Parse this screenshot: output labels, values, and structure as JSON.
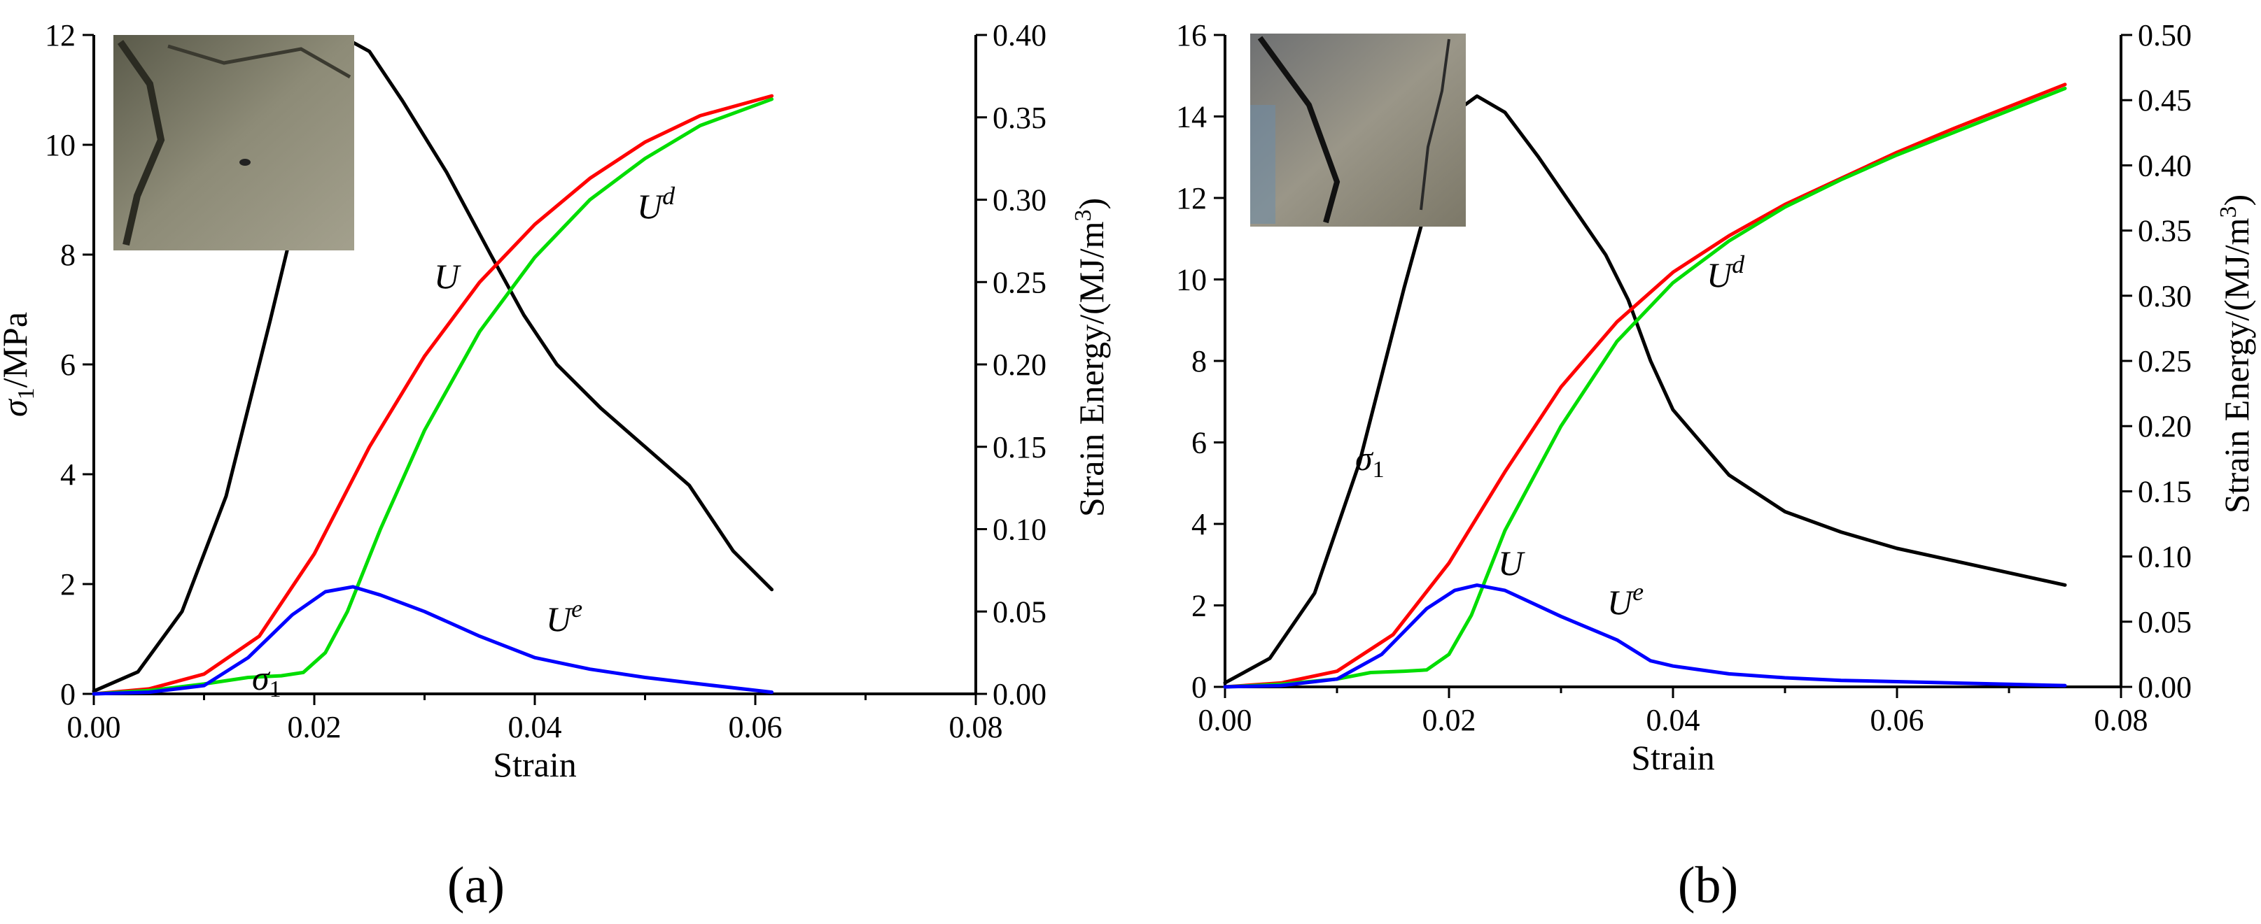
{
  "colors": {
    "stress": "#000000",
    "U": "#ff0000",
    "Ud": "#00dd00",
    "Ue": "#0000ff"
  },
  "chart_data": [
    {
      "panel": "(a)",
      "type": "line",
      "xlabel": "Strain",
      "ylabel_left": "σ1/MPa",
      "ylabel_right": "Strain Energy/(MJ/m3)",
      "xlim": [
        0,
        0.08
      ],
      "ylim_left": [
        0,
        12
      ],
      "ylim_right": [
        0,
        0.4
      ],
      "xticks": [
        "0.00",
        "0.02",
        "0.04",
        "0.06",
        "0.08"
      ],
      "yticks_left": [
        "0",
        "2",
        "4",
        "6",
        "8",
        "10",
        "12"
      ],
      "yticks_right": [
        "0.00",
        "0.05",
        "0.10",
        "0.15",
        "0.20",
        "0.25",
        "0.30",
        "0.35",
        "0.40"
      ],
      "series": [
        {
          "name": "σ1",
          "axis": "left",
          "color_key": "stress",
          "x": [
            0,
            0.004,
            0.008,
            0.012,
            0.016,
            0.019,
            0.021,
            0.0232,
            0.025,
            0.028,
            0.032,
            0.036,
            0.039,
            0.042,
            0.046,
            0.05,
            0.054,
            0.058,
            0.0615
          ],
          "y": [
            0.05,
            0.4,
            1.5,
            3.6,
            6.8,
            9.3,
            11.0,
            11.9,
            11.7,
            10.8,
            9.5,
            8.0,
            6.9,
            6.0,
            5.2,
            4.5,
            3.8,
            2.6,
            1.9
          ]
        },
        {
          "name": "U",
          "axis": "right",
          "color_key": "U",
          "x": [
            0,
            0.005,
            0.01,
            0.015,
            0.02,
            0.025,
            0.03,
            0.035,
            0.04,
            0.045,
            0.05,
            0.055,
            0.0615
          ],
          "y": [
            0,
            0.003,
            0.012,
            0.035,
            0.085,
            0.15,
            0.205,
            0.25,
            0.285,
            0.313,
            0.335,
            0.351,
            0.363
          ]
        },
        {
          "name": "Ud",
          "axis": "right",
          "color_key": "Ud",
          "x": [
            0,
            0.005,
            0.01,
            0.014,
            0.017,
            0.019,
            0.021,
            0.023,
            0.026,
            0.03,
            0.035,
            0.04,
            0.045,
            0.05,
            0.055,
            0.0615
          ],
          "y": [
            0,
            0.002,
            0.006,
            0.01,
            0.011,
            0.013,
            0.025,
            0.05,
            0.1,
            0.16,
            0.22,
            0.265,
            0.3,
            0.325,
            0.345,
            0.361
          ]
        },
        {
          "name": "Ue",
          "axis": "right",
          "color_key": "Ue",
          "x": [
            0,
            0.005,
            0.01,
            0.014,
            0.018,
            0.021,
            0.0235,
            0.026,
            0.03,
            0.035,
            0.04,
            0.045,
            0.05,
            0.055,
            0.0615
          ],
          "y": [
            0,
            0.001,
            0.005,
            0.022,
            0.048,
            0.062,
            0.065,
            0.06,
            0.05,
            0.035,
            0.022,
            0.015,
            0.01,
            0.006,
            0.001
          ]
        }
      ],
      "annotations": [
        {
          "base": "σ",
          "sub": "1"
        },
        {
          "base": "U"
        },
        {
          "base": "U",
          "sup": "d"
        },
        {
          "base": "U",
          "sup": "e"
        }
      ]
    },
    {
      "panel": "(b)",
      "type": "line",
      "xlabel": "Strain",
      "ylabel_left": "",
      "ylabel_right": "Strain Energy/(MJ/m3)",
      "xlim": [
        0,
        0.08
      ],
      "ylim_left": [
        0,
        16
      ],
      "ylim_right": [
        0,
        0.5
      ],
      "xticks": [
        "0.00",
        "0.02",
        "0.04",
        "0.06",
        "0.08"
      ],
      "yticks_left": [
        "0",
        "2",
        "4",
        "6",
        "8",
        "10",
        "12",
        "14",
        "16"
      ],
      "yticks_right": [
        "0.00",
        "0.05",
        "0.10",
        "0.15",
        "0.20",
        "0.25",
        "0.30",
        "0.35",
        "0.40",
        "0.45",
        "0.50"
      ],
      "series": [
        {
          "name": "σ1",
          "axis": "left",
          "color_key": "stress",
          "x": [
            0,
            0.004,
            0.008,
            0.012,
            0.016,
            0.019,
            0.021,
            0.0225,
            0.025,
            0.028,
            0.031,
            0.034,
            0.036,
            0.038,
            0.04,
            0.045,
            0.05,
            0.055,
            0.06,
            0.065,
            0.07,
            0.075
          ],
          "y": [
            0.1,
            0.7,
            2.3,
            5.5,
            9.8,
            12.8,
            14.2,
            14.5,
            14.1,
            13.0,
            11.8,
            10.6,
            9.5,
            8.0,
            6.8,
            5.2,
            4.3,
            3.8,
            3.4,
            3.1,
            2.8,
            2.5
          ]
        },
        {
          "name": "U",
          "axis": "right",
          "color_key": "U",
          "x": [
            0,
            0.005,
            0.01,
            0.015,
            0.02,
            0.025,
            0.03,
            0.035,
            0.04,
            0.045,
            0.05,
            0.055,
            0.06,
            0.065,
            0.07,
            0.075
          ],
          "y": [
            0,
            0.003,
            0.012,
            0.04,
            0.095,
            0.165,
            0.23,
            0.28,
            0.318,
            0.346,
            0.37,
            0.39,
            0.41,
            0.428,
            0.445,
            0.462
          ]
        },
        {
          "name": "Ud",
          "axis": "right",
          "color_key": "Ud",
          "x": [
            0,
            0.005,
            0.01,
            0.013,
            0.016,
            0.018,
            0.02,
            0.022,
            0.025,
            0.03,
            0.035,
            0.04,
            0.045,
            0.05,
            0.055,
            0.06,
            0.065,
            0.07,
            0.075
          ],
          "y": [
            0,
            0.002,
            0.006,
            0.011,
            0.012,
            0.013,
            0.025,
            0.055,
            0.12,
            0.2,
            0.265,
            0.31,
            0.342,
            0.368,
            0.389,
            0.408,
            0.425,
            0.442,
            0.459
          ]
        },
        {
          "name": "Ue",
          "axis": "right",
          "color_key": "Ue",
          "x": [
            0,
            0.005,
            0.01,
            0.014,
            0.018,
            0.0205,
            0.0225,
            0.025,
            0.03,
            0.035,
            0.038,
            0.04,
            0.045,
            0.05,
            0.055,
            0.06,
            0.065,
            0.07,
            0.075
          ],
          "y": [
            0,
            0.001,
            0.006,
            0.025,
            0.06,
            0.074,
            0.078,
            0.074,
            0.054,
            0.036,
            0.02,
            0.016,
            0.01,
            0.007,
            0.005,
            0.004,
            0.003,
            0.002,
            0.001
          ]
        }
      ],
      "annotations": [
        {
          "base": "σ",
          "sub": "1"
        },
        {
          "base": "U"
        },
        {
          "base": "U",
          "sup": "d"
        },
        {
          "base": "U",
          "sup": "e"
        }
      ]
    }
  ]
}
